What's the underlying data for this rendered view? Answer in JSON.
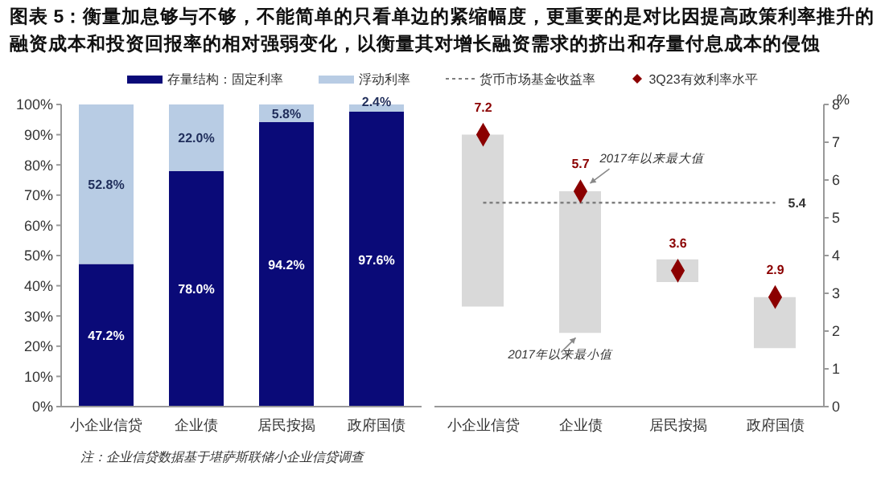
{
  "chart_data": [
    {
      "type": "bar",
      "title": "图表 5：衡量加息够与不够，不能简单的只看单边的紧缩幅度，更重要的是对比因提高政策利率推升的融资成本和投资回报率的相对强弱变化，以衡量其对增长融资需求的挤出和存量付息成本的侵蚀",
      "categories": [
        "小企业信贷",
        "企业债",
        "居民按揭",
        "政府国债"
      ],
      "stacked": true,
      "legend": "top",
      "series": [
        {
          "name": "存量结构：固定利率",
          "color": "#0a0a78",
          "values": [
            47.2,
            78.0,
            94.2,
            97.6
          ],
          "value_labels": [
            "47.2%",
            "78.0%",
            "94.2%",
            "97.6%"
          ]
        },
        {
          "name": "浮动利率",
          "color": "#b8cce4",
          "values": [
            52.8,
            22.0,
            5.8,
            2.4
          ],
          "value_labels": [
            "52.8%",
            "22.0%",
            "5.8%",
            "2.4%"
          ]
        }
      ],
      "ylim": [
        0,
        100
      ],
      "yticks": [
        {
          "value": 0,
          "label": "0%"
        },
        {
          "value": 10,
          "label": "10%"
        },
        {
          "value": 20,
          "label": "20%"
        },
        {
          "value": 30,
          "label": "30%"
        },
        {
          "value": 40,
          "label": "40%"
        },
        {
          "value": 50,
          "label": "50%"
        },
        {
          "value": 60,
          "label": "60%"
        },
        {
          "value": 70,
          "label": "70%"
        },
        {
          "value": 80,
          "label": "80%"
        },
        {
          "value": 90,
          "label": "90%"
        },
        {
          "value": 100,
          "label": "100%"
        }
      ],
      "annotations": [
        "注：企业信贷数据基于堪萨斯联储小企业信贷调查"
      ]
    },
    {
      "type": "bar",
      "categories": [
        "小企业信贷",
        "企业债",
        "居民按揭",
        "政府国债"
      ],
      "legend": "top",
      "ylabel": "%",
      "series": [
        {
          "color": "#d9d9d9",
          "values": [
            4.55,
            3.75,
            0.6,
            1.35
          ],
          "base": [
            2.65,
            1.95,
            3.3,
            1.55
          ]
        },
        {
          "name": "货币市场基金收益率",
          "type": "line",
          "color": "#7f7f7f",
          "line_style": "dotted",
          "marker": "none",
          "values": [
            5.4,
            5.4,
            5.4,
            5.4
          ],
          "value_labels": [
            null,
            null,
            null,
            "5.4"
          ]
        },
        {
          "name": "3Q23有效利率水平",
          "type": "scatter",
          "color": "#8b0000",
          "marker": "diamond",
          "values": [
            7.2,
            5.7,
            3.6,
            2.9
          ],
          "value_labels": [
            "7.2",
            "5.7",
            "3.6",
            "2.9"
          ]
        }
      ],
      "ylim": [
        0,
        8
      ],
      "yticks": [
        0,
        1,
        2,
        3,
        4,
        5,
        6,
        7,
        8
      ],
      "annotations": [
        {
          "text": "2017年以来最大值",
          "x": "企业债",
          "y": 5.7
        },
        {
          "text": "2017年以来最小值",
          "x": "企业债",
          "y": 1.95
        }
      ]
    }
  ]
}
